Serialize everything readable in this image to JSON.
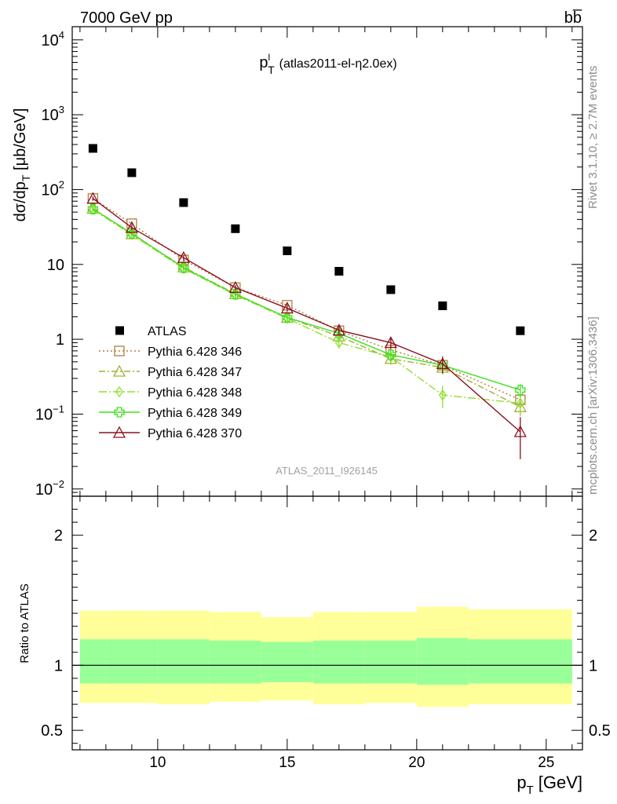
{
  "header": {
    "left": "7000 GeV pp",
    "right": "bb̅"
  },
  "side": {
    "top": "Rivet 3.1.10, ≥ 2.7M events",
    "bottom": "mcplots.cern.ch [arXiv:1306.3436]"
  },
  "chart_data": [
    {
      "type": "scatter",
      "title_main": "p",
      "title_sup": "l",
      "title_sub": "T",
      "title_rest": "(atlas2011-el-η2.0ex)",
      "watermark": "ATLAS_2011_I926145",
      "ylabel": "dσ/dp_T [μb/GeV]",
      "yscale": "log",
      "ylim": [
        0.008,
        15000
      ],
      "xlim": [
        6.7,
        26.4
      ],
      "y_ticks": [
        {
          "v": 0.01,
          "base": "10",
          "exp": "−2"
        },
        {
          "v": 0.1,
          "base": "10",
          "exp": "−1"
        },
        {
          "v": 1,
          "label": "1"
        },
        {
          "v": 10,
          "label": "10"
        },
        {
          "v": 100,
          "base": "10",
          "exp": "2"
        },
        {
          "v": 1000,
          "base": "10",
          "exp": "3"
        },
        {
          "v": 10000,
          "base": "10",
          "exp": "4"
        }
      ],
      "data": {
        "name": "ATLAS",
        "x": [
          7.5,
          9,
          11,
          13,
          15,
          17,
          19,
          21,
          24
        ],
        "y": [
          355,
          168,
          67,
          30,
          15.2,
          8.1,
          4.6,
          2.8,
          1.3
        ]
      },
      "series": [
        {
          "name": "Pythia 6.428 346",
          "color": "#b08040",
          "dash": "2,3",
          "marker": "square",
          "x": [
            7.5,
            9,
            11,
            13,
            15,
            17,
            19,
            21,
            24
          ],
          "y": [
            76,
            35,
            11.5,
            4.9,
            2.85,
            1.3,
            0.72,
            0.45,
            0.155
          ],
          "err": [
            5,
            2.5,
            1,
            0.4,
            0.25,
            0.15,
            0.1,
            0.08,
            0.03
          ]
        },
        {
          "name": "Pythia 6.428 347",
          "color": "#a0b030",
          "dash": "8,3,2,3",
          "marker": "triangle",
          "x": [
            7.5,
            9,
            11,
            13,
            15,
            17,
            19,
            21,
            24
          ],
          "y": [
            56,
            25.5,
            9.2,
            4.05,
            1.95,
            1.1,
            0.55,
            0.42,
            0.125
          ],
          "err": [
            4,
            2,
            0.8,
            0.35,
            0.2,
            0.15,
            0.09,
            0.08,
            0.03
          ]
        },
        {
          "name": "Pythia 6.428 348",
          "color": "#90e030",
          "dash": "10,3,2,3",
          "marker": "diamond",
          "x": [
            7.5,
            9,
            11,
            13,
            15,
            17,
            19,
            21,
            24
          ],
          "y": [
            54,
            25,
            8.8,
            3.9,
            1.9,
            0.9,
            0.58,
            0.18,
            0.14
          ],
          "err": [
            4,
            2,
            0.8,
            0.35,
            0.2,
            0.15,
            0.1,
            0.06,
            0.04
          ]
        },
        {
          "name": "Pythia 6.428 349",
          "color": "#40e020",
          "dash": "",
          "marker": "cross",
          "x": [
            7.5,
            9,
            11,
            13,
            15,
            17,
            19,
            21,
            24
          ],
          "y": [
            55,
            26,
            9.0,
            4.0,
            1.95,
            1.2,
            0.62,
            0.45,
            0.21
          ],
          "err": [
            4,
            2,
            0.8,
            0.35,
            0.2,
            0.15,
            0.1,
            0.08,
            0.04
          ]
        },
        {
          "name": "Pythia 6.428 370",
          "color": "#8b1020",
          "dash": "",
          "marker": "triangle",
          "x": [
            7.5,
            9,
            11,
            13,
            15,
            17,
            19,
            21,
            24
          ],
          "y": [
            76,
            31,
            12.3,
            4.9,
            2.6,
            1.32,
            0.9,
            0.47,
            0.058
          ],
          "err": [
            5,
            2.5,
            1,
            0.4,
            0.25,
            0.18,
            0.15,
            0.12,
            0.033
          ]
        }
      ]
    },
    {
      "type": "area",
      "ylabel": "Ratio to ATLAS",
      "ylim": [
        0.35,
        2.3
      ],
      "xlim": [
        6.7,
        26.4
      ],
      "xlabel_main": "p",
      "xlabel_sub": "T",
      "xlabel_unit": "[GeV]",
      "x_ticks": [
        10,
        15,
        20,
        25
      ],
      "y_ticks": [
        {
          "v": 0.5,
          "label": "0.5"
        },
        {
          "v": 1,
          "label": "1"
        },
        {
          "v": 2,
          "label": "2"
        }
      ],
      "bins": [
        [
          7,
          8
        ],
        [
          8,
          10
        ],
        [
          10,
          12
        ],
        [
          12,
          14
        ],
        [
          14,
          16
        ],
        [
          16,
          18
        ],
        [
          18,
          20
        ],
        [
          20,
          22
        ],
        [
          22,
          26
        ]
      ],
      "band_inner": [
        [
          0.86,
          1.2
        ],
        [
          0.86,
          1.2
        ],
        [
          0.86,
          1.2
        ],
        [
          0.86,
          1.19
        ],
        [
          0.87,
          1.18
        ],
        [
          0.86,
          1.19
        ],
        [
          0.86,
          1.19
        ],
        [
          0.85,
          1.21
        ],
        [
          0.86,
          1.2
        ]
      ],
      "band_outer": [
        [
          0.71,
          1.42
        ],
        [
          0.71,
          1.42
        ],
        [
          0.7,
          1.42
        ],
        [
          0.72,
          1.41
        ],
        [
          0.73,
          1.37
        ],
        [
          0.7,
          1.41
        ],
        [
          0.71,
          1.41
        ],
        [
          0.68,
          1.45
        ],
        [
          0.7,
          1.43
        ]
      ],
      "inner_color": "#99ff99",
      "outer_color": "#ffff99"
    }
  ]
}
